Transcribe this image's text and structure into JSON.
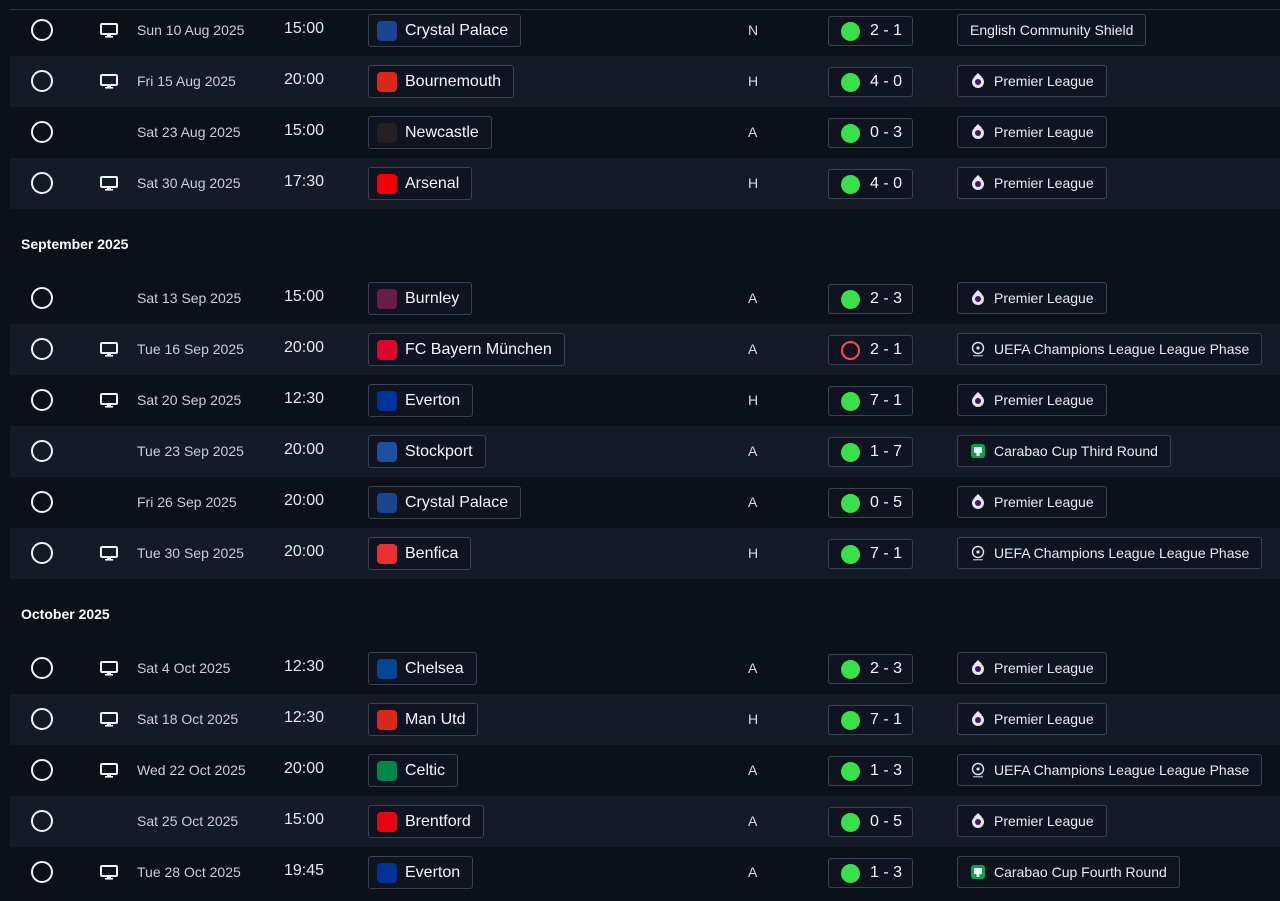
{
  "colors": {
    "background": "#0c1019",
    "row_shaded": "#151a27",
    "win_dot": "#3ae04a",
    "loss_ring": "#ff4a55"
  },
  "sections": [
    {
      "month": "",
      "rows": [
        {
          "tv": true,
          "date": "Sun 10 Aug 2025",
          "time": "15:00",
          "team": "Crystal Palace",
          "crest_color": "#1b458f",
          "venue": "N",
          "score": "2 - 1",
          "outcome": "win",
          "competition": "English Community Shield",
          "comp_icon": ""
        },
        {
          "tv": true,
          "date": "Fri 15 Aug 2025",
          "time": "20:00",
          "team": "Bournemouth",
          "crest_color": "#da291c",
          "venue": "H",
          "score": "4 - 0",
          "outcome": "win",
          "competition": "Premier League",
          "comp_icon": "premier-league-icon"
        },
        {
          "tv": false,
          "date": "Sat 23 Aug 2025",
          "time": "15:00",
          "team": "Newcastle",
          "crest_color": "#241f20",
          "venue": "A",
          "score": "0 - 3",
          "outcome": "win",
          "competition": "Premier League",
          "comp_icon": "premier-league-icon"
        },
        {
          "tv": true,
          "date": "Sat 30 Aug 2025",
          "time": "17:30",
          "team": "Arsenal",
          "crest_color": "#ef0107",
          "venue": "H",
          "score": "4 - 0",
          "outcome": "win",
          "competition": "Premier League",
          "comp_icon": "premier-league-icon"
        }
      ]
    },
    {
      "month": "September 2025",
      "rows": [
        {
          "tv": false,
          "date": "Sat 13 Sep 2025",
          "time": "15:00",
          "team": "Burnley",
          "crest_color": "#6c1d45",
          "venue": "A",
          "score": "2 - 3",
          "outcome": "win",
          "competition": "Premier League",
          "comp_icon": "premier-league-icon"
        },
        {
          "tv": true,
          "date": "Tue 16 Sep 2025",
          "time": "20:00",
          "team": "FC Bayern München",
          "crest_color": "#dc052d",
          "venue": "A",
          "score": "2 - 1",
          "outcome": "loss",
          "competition": "UEFA Champions League League Phase",
          "comp_icon": "champions-league-icon"
        },
        {
          "tv": true,
          "date": "Sat 20 Sep 2025",
          "time": "12:30",
          "team": "Everton",
          "crest_color": "#003399",
          "venue": "H",
          "score": "7 - 1",
          "outcome": "win",
          "competition": "Premier League",
          "comp_icon": "premier-league-icon"
        },
        {
          "tv": false,
          "date": "Tue 23 Sep 2025",
          "time": "20:00",
          "team": "Stockport",
          "crest_color": "#1e4fa3",
          "venue": "A",
          "score": "1 - 7",
          "outcome": "win",
          "competition": "Carabao Cup Third Round",
          "comp_icon": "carabao-cup-icon"
        },
        {
          "tv": false,
          "date": "Fri 26 Sep 2025",
          "time": "20:00",
          "team": "Crystal Palace",
          "crest_color": "#1b458f",
          "venue": "A",
          "score": "0 - 5",
          "outcome": "win",
          "competition": "Premier League",
          "comp_icon": "premier-league-icon"
        },
        {
          "tv": true,
          "date": "Tue 30 Sep 2025",
          "time": "20:00",
          "team": "Benfica",
          "crest_color": "#e83030",
          "venue": "H",
          "score": "7 - 1",
          "outcome": "win",
          "competition": "UEFA Champions League League Phase",
          "comp_icon": "champions-league-icon"
        }
      ]
    },
    {
      "month": "October 2025",
      "rows": [
        {
          "tv": true,
          "date": "Sat 4 Oct 2025",
          "time": "12:30",
          "team": "Chelsea",
          "crest_color": "#034694",
          "venue": "A",
          "score": "2 - 3",
          "outcome": "win",
          "competition": "Premier League",
          "comp_icon": "premier-league-icon"
        },
        {
          "tv": true,
          "date": "Sat 18 Oct 2025",
          "time": "12:30",
          "team": "Man Utd",
          "crest_color": "#da291c",
          "venue": "H",
          "score": "7 - 1",
          "outcome": "win",
          "competition": "Premier League",
          "comp_icon": "premier-league-icon"
        },
        {
          "tv": true,
          "date": "Wed 22 Oct 2025",
          "time": "20:00",
          "team": "Celtic",
          "crest_color": "#018749",
          "venue": "A",
          "score": "1 - 3",
          "outcome": "win",
          "competition": "UEFA Champions League League Phase",
          "comp_icon": "champions-league-icon"
        },
        {
          "tv": false,
          "date": "Sat 25 Oct 2025",
          "time": "15:00",
          "team": "Brentford",
          "crest_color": "#e30613",
          "venue": "A",
          "score": "0 - 5",
          "outcome": "win",
          "competition": "Premier League",
          "comp_icon": "premier-league-icon"
        },
        {
          "tv": true,
          "date": "Tue 28 Oct 2025",
          "time": "19:45",
          "team": "Everton",
          "crest_color": "#003399",
          "venue": "A",
          "score": "1 - 3",
          "outcome": "win",
          "competition": "Carabao Cup Fourth Round",
          "comp_icon": "carabao-cup-icon"
        }
      ]
    }
  ]
}
